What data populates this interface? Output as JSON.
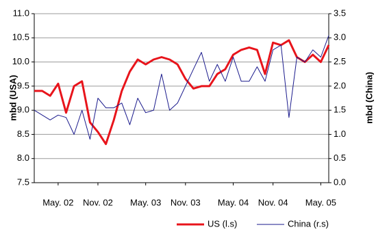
{
  "chart_data": {
    "type": "line",
    "categories": [
      null,
      null,
      null,
      "May. 02",
      null,
      null,
      null,
      null,
      "Nov. 02",
      null,
      null,
      null,
      null,
      null,
      "May. 03",
      null,
      null,
      null,
      null,
      "Nov. 03",
      null,
      null,
      null,
      null,
      null,
      "May. 04",
      null,
      null,
      null,
      null,
      "Nov. 04",
      null,
      null,
      null,
      null,
      null,
      "May. 05",
      null
    ],
    "series": [
      {
        "name": "US (l.s)",
        "color": "#e8141b",
        "axis": "y",
        "values": [
          9.4,
          9.4,
          9.3,
          9.55,
          8.95,
          9.5,
          9.6,
          8.75,
          8.55,
          8.3,
          8.8,
          9.4,
          9.8,
          10.05,
          9.95,
          10.05,
          10.1,
          10.05,
          9.95,
          9.65,
          9.45,
          9.5,
          9.5,
          9.75,
          9.85,
          10.15,
          10.25,
          10.3,
          10.25,
          9.75,
          10.4,
          10.35,
          10.45,
          10.1,
          10.0,
          10.15,
          10.0,
          10.35
        ]
      },
      {
        "name": "China (r.s)",
        "color": "#1a1a8c",
        "axis": "y2",
        "values": [
          1.5,
          1.4,
          1.3,
          1.4,
          1.35,
          1.0,
          1.5,
          0.9,
          1.75,
          1.55,
          1.55,
          1.65,
          1.2,
          1.75,
          1.45,
          1.5,
          2.25,
          1.5,
          1.65,
          2.0,
          2.35,
          2.7,
          2.1,
          2.45,
          2.1,
          2.6,
          2.1,
          2.1,
          2.4,
          2.1,
          2.75,
          2.85,
          1.35,
          2.6,
          2.5,
          2.75,
          2.6,
          3.05
        ]
      }
    ],
    "ylabel": "mbd (USA)",
    "y2label": "mbd (China)",
    "ylim": [
      7.5,
      11.0
    ],
    "yticks": [
      7.5,
      {
        "value": 8.0,
        "label": "8.0"
      },
      8.5,
      {
        "value": 9.0,
        "label": "9.0"
      },
      9.5,
      {
        "value": 10.0,
        "label": "10.0"
      },
      10.5,
      {
        "value": 11.0,
        "label": "11.0"
      }
    ],
    "y2lim": [
      0,
      3.5
    ],
    "y2ticks": [
      {
        "value": 0,
        "label": "0.0"
      },
      0.5,
      {
        "value": 1,
        "label": "1.0"
      },
      1.5,
      {
        "value": 2,
        "label": "2.0"
      },
      2.5,
      {
        "value": 3,
        "label": "3.0"
      },
      3.5
    ],
    "grid": true,
    "legend": "bottom"
  }
}
